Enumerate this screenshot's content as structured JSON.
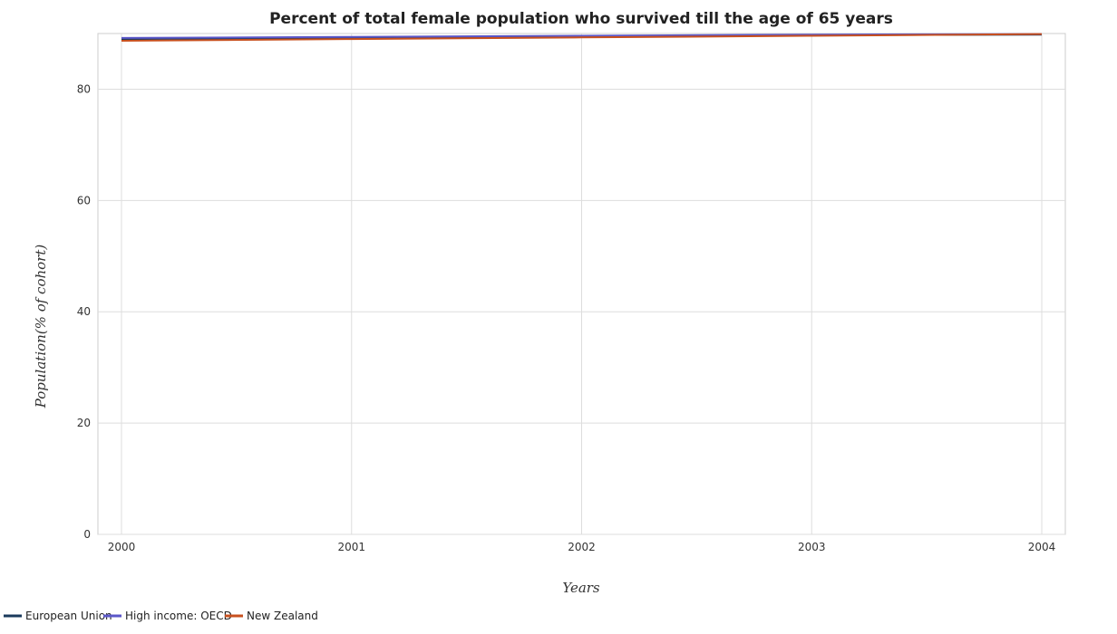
{
  "chart_data": {
    "type": "line",
    "title": "Percent of total female population who survived till the age of 65 years",
    "xlabel": "Years",
    "ylabel": "Population(% of cohort)",
    "x": [
      "2000",
      "2001",
      "2002",
      "2003",
      "2004"
    ],
    "ylim": [
      0,
      90
    ],
    "yticks": [
      "0",
      "20",
      "40",
      "60",
      "80"
    ],
    "grid": true,
    "legend_position": "bottom-left",
    "series": [
      {
        "name": "European Union",
        "color": "#1a3a5c",
        "values": [
          89.0,
          89.2,
          89.5,
          89.7,
          89.8
        ]
      },
      {
        "name": "High income: OECD",
        "color": "#5b57c9",
        "values": [
          89.2,
          89.4,
          89.6,
          89.8,
          89.9
        ]
      },
      {
        "name": "New Zealand",
        "color": "#c8501e",
        "values": [
          88.7,
          89.0,
          89.3,
          89.6,
          89.9
        ]
      }
    ]
  }
}
